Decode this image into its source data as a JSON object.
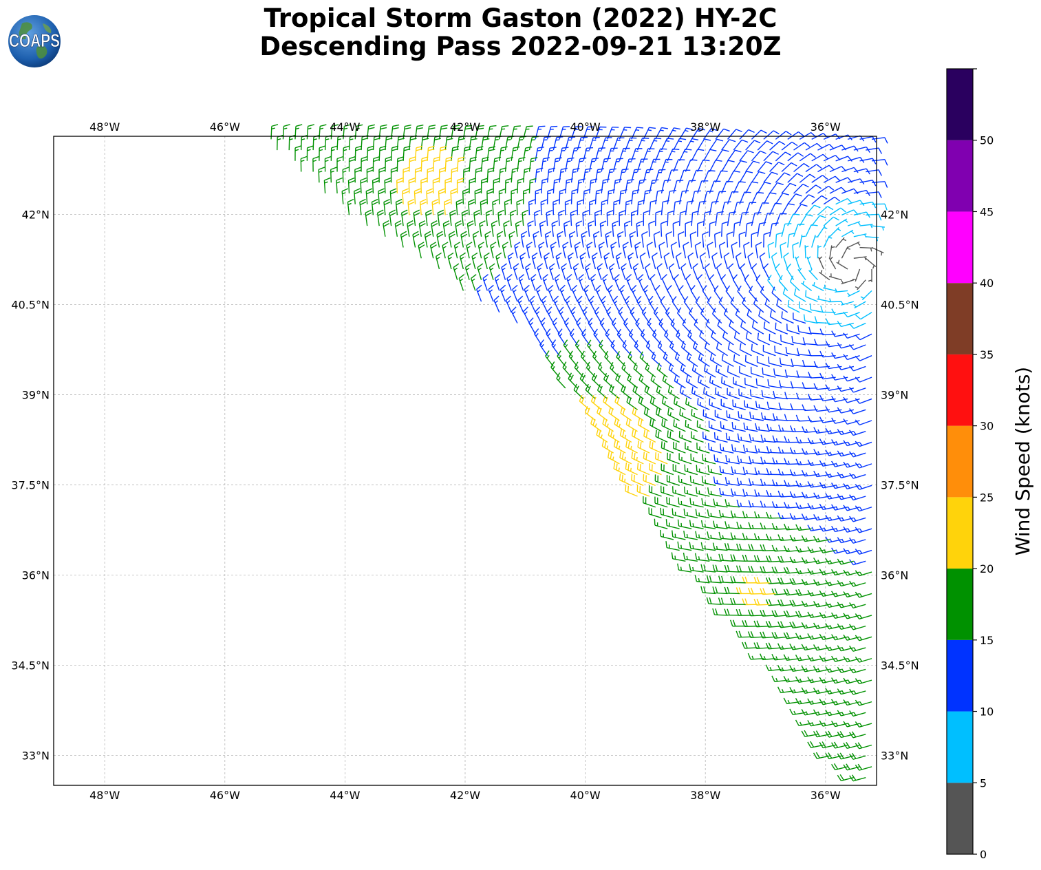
{
  "title": {
    "line1": "Tropical Storm Gaston (2022) HY-2C",
    "line2": "Descending Pass 2022-09-21 13:20Z"
  },
  "logo": {
    "text": "COAPS",
    "icon": "globe-icon"
  },
  "map": {
    "lon_range": [
      -48.85,
      -35.15
    ],
    "lat_range": [
      32.5,
      43.3
    ],
    "lon_ticks": [
      {
        "value": -48,
        "label": "48°W"
      },
      {
        "value": -46,
        "label": "46°W"
      },
      {
        "value": -44,
        "label": "44°W"
      },
      {
        "value": -42,
        "label": "42°W"
      },
      {
        "value": -40,
        "label": "40°W"
      },
      {
        "value": -38,
        "label": "38°W"
      },
      {
        "value": -36,
        "label": "36°W"
      }
    ],
    "lat_ticks": [
      {
        "value": 42,
        "label": "42°N"
      },
      {
        "value": 40.5,
        "label": "40.5°N"
      },
      {
        "value": 39,
        "label": "39°N"
      },
      {
        "value": 37.5,
        "label": "37.5°N"
      },
      {
        "value": 36,
        "label": "36°N"
      },
      {
        "value": 34.5,
        "label": "34.5°N"
      },
      {
        "value": 33,
        "label": "33°N"
      }
    ],
    "gridlines": true,
    "swath": {
      "west_edge": [
        [
          -45.5,
          43.3
        ],
        [
          -44.0,
          42.0
        ],
        [
          -41.0,
          40.0
        ],
        [
          -38.5,
          36.3
        ],
        [
          -37.0,
          34.5
        ],
        [
          -36.0,
          33.0
        ],
        [
          -35.5,
          32.5
        ]
      ],
      "storm_center": [
        -35.55,
        41.15
      ],
      "wind_barbs": "wind barbs in knots across the scatterometer swath east of the swath edge; speeds range roughly 0-25 knots, lowest near the storm center at about 35.5°W 41.2°N, strongest (20-25 knots) near 39.5°W 38°N"
    }
  },
  "colorbar": {
    "label": "Wind Speed (knots)",
    "ticks": [
      {
        "value": 0,
        "label": "0"
      },
      {
        "value": 5,
        "label": "5"
      },
      {
        "value": 10,
        "label": "10"
      },
      {
        "value": 15,
        "label": "15"
      },
      {
        "value": 20,
        "label": "20"
      },
      {
        "value": 25,
        "label": "25"
      },
      {
        "value": 30,
        "label": "30"
      },
      {
        "value": 35,
        "label": "35"
      },
      {
        "value": 40,
        "label": "40"
      },
      {
        "value": 45,
        "label": "45"
      },
      {
        "value": 50,
        "label": "50"
      }
    ],
    "bins": [
      {
        "min": 0,
        "max": 5,
        "color": "#555555"
      },
      {
        "min": 5,
        "max": 10,
        "color": "#00bfff"
      },
      {
        "min": 10,
        "max": 15,
        "color": "#0033ff"
      },
      {
        "min": 15,
        "max": 20,
        "color": "#009100"
      },
      {
        "min": 20,
        "max": 25,
        "color": "#ffd30b"
      },
      {
        "min": 25,
        "max": 30,
        "color": "#ff8e0a"
      },
      {
        "min": 30,
        "max": 35,
        "color": "#ff1010"
      },
      {
        "min": 35,
        "max": 40,
        "color": "#7f3d26"
      },
      {
        "min": 40,
        "max": 45,
        "color": "#ff00ff"
      },
      {
        "min": 45,
        "max": 50,
        "color": "#8000b0"
      },
      {
        "min": 50,
        "max": 55,
        "color": "#2a005f"
      }
    ]
  }
}
